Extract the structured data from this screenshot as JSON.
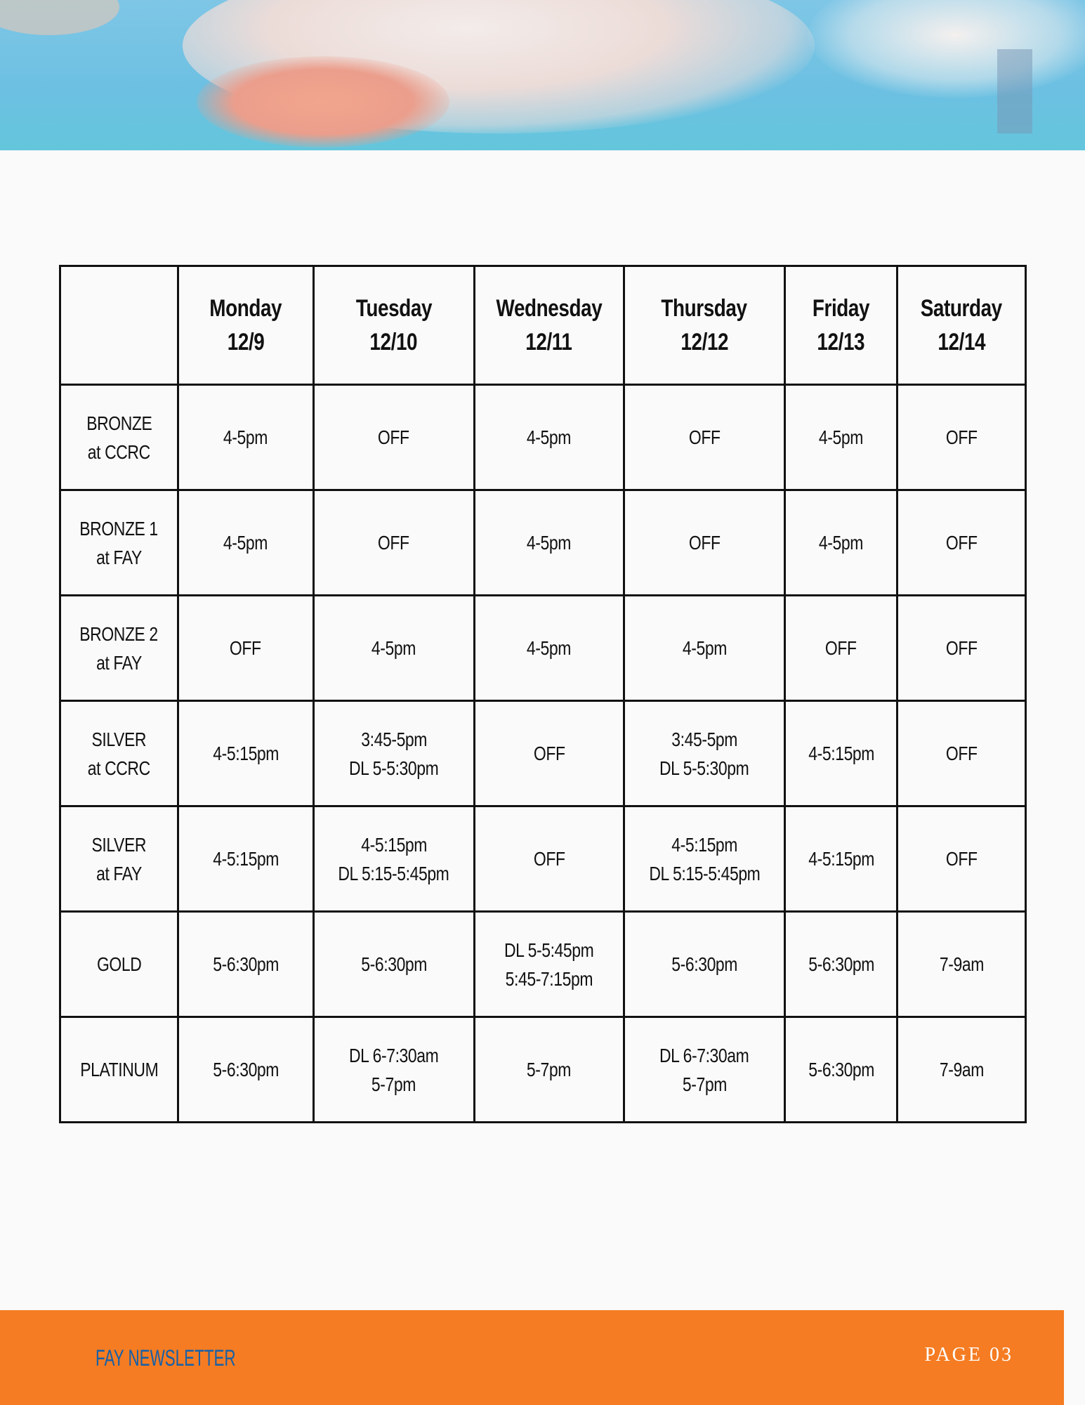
{
  "schedule": {
    "headers": [
      {
        "day": "",
        "date": ""
      },
      {
        "day": "Monday",
        "date": "12/9"
      },
      {
        "day": "Tuesday",
        "date": "12/10"
      },
      {
        "day": "Wednesday",
        "date": "12/11"
      },
      {
        "day": "Thursday",
        "date": "12/12"
      },
      {
        "day": "Friday",
        "date": "12/13"
      },
      {
        "day": "Saturday",
        "date": "12/14"
      }
    ],
    "rows": [
      {
        "group": [
          "BRONZE",
          "at CCRC"
        ],
        "cells": [
          [
            "4-5pm"
          ],
          [
            "OFF"
          ],
          [
            "4-5pm"
          ],
          [
            "OFF"
          ],
          [
            "4-5pm"
          ],
          [
            "OFF"
          ]
        ]
      },
      {
        "group": [
          "BRONZE 1",
          "at FAY"
        ],
        "cells": [
          [
            "4-5pm"
          ],
          [
            "OFF"
          ],
          [
            "4-5pm"
          ],
          [
            "OFF"
          ],
          [
            "4-5pm"
          ],
          [
            "OFF"
          ]
        ]
      },
      {
        "group": [
          "BRONZE 2",
          "at FAY"
        ],
        "cells": [
          [
            "OFF"
          ],
          [
            "4-5pm"
          ],
          [
            "4-5pm"
          ],
          [
            "4-5pm"
          ],
          [
            "OFF"
          ],
          [
            "OFF"
          ]
        ]
      },
      {
        "group": [
          "SILVER",
          "at CCRC"
        ],
        "cells": [
          [
            "4-5:15pm"
          ],
          [
            "3:45-5pm",
            "DL 5-5:30pm"
          ],
          [
            "OFF"
          ],
          [
            "3:45-5pm",
            "DL 5-5:30pm"
          ],
          [
            "4-5:15pm"
          ],
          [
            "OFF"
          ]
        ]
      },
      {
        "group": [
          "SILVER",
          "at FAY"
        ],
        "cells": [
          [
            "4-5:15pm"
          ],
          [
            "4-5:15pm",
            "DL 5:15-5:45pm"
          ],
          [
            "OFF"
          ],
          [
            "4-5:15pm",
            "DL 5:15-5:45pm"
          ],
          [
            "4-5:15pm"
          ],
          [
            "OFF"
          ]
        ]
      },
      {
        "group": [
          "GOLD"
        ],
        "cells": [
          [
            "5-6:30pm"
          ],
          [
            "5-6:30pm"
          ],
          [
            "DL 5-5:45pm",
            "5:45-7:15pm"
          ],
          [
            "5-6:30pm"
          ],
          [
            "5-6:30pm"
          ],
          [
            "7-9am"
          ]
        ]
      },
      {
        "group": [
          "PLATINUM"
        ],
        "cells": [
          [
            "5-6:30pm"
          ],
          [
            "DL 6-7:30am",
            "5-7pm"
          ],
          [
            "5-7pm"
          ],
          [
            "DL 6-7:30am",
            "5-7pm"
          ],
          [
            "5-6:30pm"
          ],
          [
            "7-9am"
          ]
        ]
      }
    ]
  },
  "footer": {
    "title": "FAY NEWSLETTER",
    "page": "PAGE 03"
  },
  "colors": {
    "footer_bg": "#f57c22",
    "footer_title": "#1560a8",
    "page_bg": "#fafafa"
  }
}
